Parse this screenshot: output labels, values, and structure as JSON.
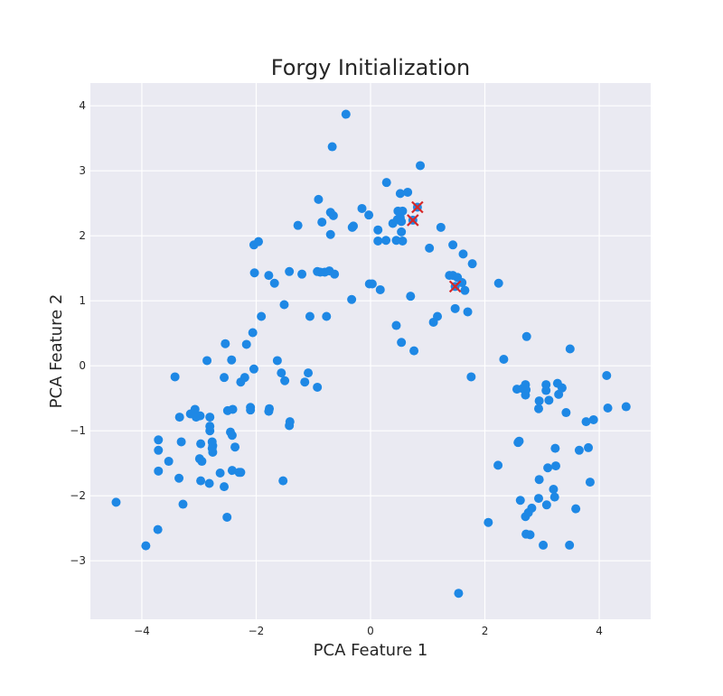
{
  "chart_data": {
    "type": "scatter",
    "title": "Forgy Initialization",
    "xlabel": "PCA Feature 1",
    "ylabel": "PCA Feature 2",
    "xlim": [
      -4.9,
      4.9
    ],
    "ylim": [
      -3.9,
      4.35
    ],
    "xticks": [
      -4,
      -2,
      0,
      2,
      4
    ],
    "yticks": [
      -3,
      -2,
      -1,
      0,
      1,
      2,
      3,
      4
    ],
    "xtick_labels": [
      "−4",
      "−2",
      "0",
      "2",
      "4"
    ],
    "ytick_labels": [
      "−3",
      "−2",
      "−1",
      "0",
      "1",
      "2",
      "3",
      "4"
    ],
    "grid": true,
    "colors": {
      "plot_background": "#eaeaf2",
      "grid": "#ffffff",
      "points": "#1e88e5",
      "centroid_marker": "#d62728"
    },
    "series": [
      {
        "marker": "circle",
        "points": [
          [
            -0.43,
            3.87
          ],
          [
            -0.67,
            3.37
          ],
          [
            0.87,
            3.08
          ],
          [
            0.28,
            2.82
          ],
          [
            0.52,
            2.65
          ],
          [
            0.65,
            2.67
          ],
          [
            -0.91,
            2.56
          ],
          [
            -0.7,
            2.36
          ],
          [
            -0.15,
            2.42
          ],
          [
            -0.65,
            2.31
          ],
          [
            -0.03,
            2.32
          ],
          [
            0.48,
            2.38
          ],
          [
            0.56,
            2.38
          ],
          [
            0.52,
            2.28
          ],
          [
            0.47,
            2.25
          ],
          [
            0.39,
            2.19
          ],
          [
            0.54,
            2.22
          ],
          [
            -0.85,
            2.21
          ],
          [
            -1.27,
            2.16
          ],
          [
            -0.32,
            2.13
          ],
          [
            -0.3,
            2.15
          ],
          [
            0.13,
            2.09
          ],
          [
            0.54,
            2.06
          ],
          [
            1.23,
            2.13
          ],
          [
            -0.7,
            2.02
          ],
          [
            0.13,
            1.92
          ],
          [
            0.27,
            1.93
          ],
          [
            0.45,
            1.93
          ],
          [
            0.56,
            1.92
          ],
          [
            1.03,
            1.81
          ],
          [
            1.44,
            1.86
          ],
          [
            1.62,
            1.72
          ],
          [
            1.78,
            1.57
          ],
          [
            -1.96,
            1.91
          ],
          [
            -2.04,
            1.86
          ],
          [
            -2.03,
            1.43
          ],
          [
            -1.78,
            1.39
          ],
          [
            -1.68,
            1.27
          ],
          [
            -1.42,
            1.45
          ],
          [
            -1.2,
            1.41
          ],
          [
            -0.88,
            1.44
          ],
          [
            -0.8,
            1.44
          ],
          [
            -0.72,
            1.46
          ],
          [
            -0.63,
            1.41
          ],
          [
            -0.93,
            1.45
          ],
          [
            -0.02,
            1.26
          ],
          [
            0.03,
            1.26
          ],
          [
            0.17,
            1.17
          ],
          [
            1.38,
            1.39
          ],
          [
            1.44,
            1.39
          ],
          [
            1.52,
            1.36
          ],
          [
            1.6,
            1.28
          ],
          [
            1.65,
            1.16
          ],
          [
            2.24,
            1.27
          ],
          [
            -0.33,
            1.02
          ],
          [
            0.7,
            1.07
          ],
          [
            -1.51,
            0.94
          ],
          [
            -1.91,
            0.76
          ],
          [
            -1.06,
            0.76
          ],
          [
            -0.77,
            0.76
          ],
          [
            1.17,
            0.76
          ],
          [
            1.1,
            0.67
          ],
          [
            1.48,
            0.88
          ],
          [
            1.7,
            0.83
          ],
          [
            0.45,
            0.62
          ],
          [
            0.54,
            0.36
          ],
          [
            0.76,
            0.23
          ],
          [
            -2.06,
            0.51
          ],
          [
            -2.54,
            0.34
          ],
          [
            -2.17,
            0.33
          ],
          [
            2.33,
            0.1
          ],
          [
            -2.86,
            0.08
          ],
          [
            -2.43,
            0.09
          ],
          [
            -1.63,
            0.08
          ],
          [
            -2.04,
            -0.05
          ],
          [
            -1.56,
            -0.11
          ],
          [
            -1.09,
            -0.11
          ],
          [
            -3.42,
            -0.17
          ],
          [
            -2.56,
            -0.18
          ],
          [
            -2.2,
            -0.18
          ],
          [
            -2.27,
            -0.25
          ],
          [
            -1.5,
            -0.23
          ],
          [
            -1.15,
            -0.25
          ],
          [
            -0.93,
            -0.33
          ],
          [
            1.76,
            -0.17
          ],
          [
            2.56,
            -0.36
          ],
          [
            2.66,
            -0.35
          ],
          [
            2.71,
            -0.29
          ],
          [
            2.72,
            -0.37
          ],
          [
            2.71,
            -0.45
          ],
          [
            3.07,
            -0.29
          ],
          [
            3.07,
            -0.38
          ],
          [
            3.12,
            -0.53
          ],
          [
            3.27,
            -0.27
          ],
          [
            3.29,
            -0.44
          ],
          [
            3.35,
            -0.34
          ],
          [
            2.95,
            -0.54
          ],
          [
            2.94,
            -0.66
          ],
          [
            3.42,
            -0.72
          ],
          [
            3.49,
            0.26
          ],
          [
            2.73,
            0.45
          ],
          [
            4.13,
            -0.15
          ],
          [
            -3.07,
            -0.67
          ],
          [
            -3.15,
            -0.74
          ],
          [
            -3.05,
            -0.79
          ],
          [
            -3.34,
            -0.79
          ],
          [
            -2.98,
            -0.77
          ],
          [
            -2.81,
            -0.79
          ],
          [
            -2.5,
            -0.69
          ],
          [
            -2.41,
            -0.67
          ],
          [
            -2.1,
            -0.64
          ],
          [
            -2.1,
            -0.68
          ],
          [
            -1.77,
            -0.66
          ],
          [
            -1.78,
            -0.7
          ],
          [
            -2.81,
            -0.93
          ],
          [
            -2.81,
            -1.0
          ],
          [
            -2.45,
            -1.02
          ],
          [
            -2.42,
            -1.07
          ],
          [
            -1.41,
            -0.86
          ],
          [
            -1.42,
            -0.92
          ],
          [
            3.77,
            -0.86
          ],
          [
            3.9,
            -0.83
          ],
          [
            4.15,
            -0.65
          ],
          [
            4.47,
            -0.63
          ],
          [
            -3.71,
            -1.14
          ],
          [
            -3.31,
            -1.17
          ],
          [
            -2.77,
            -1.17
          ],
          [
            -2.97,
            -1.2
          ],
          [
            -2.76,
            -1.23
          ],
          [
            -2.77,
            -1.27
          ],
          [
            -2.76,
            -1.33
          ],
          [
            -2.37,
            -1.25
          ],
          [
            -3.71,
            -1.3
          ],
          [
            -3.53,
            -1.47
          ],
          [
            -2.99,
            -1.43
          ],
          [
            -2.95,
            -1.47
          ],
          [
            2.6,
            -1.16
          ],
          [
            2.58,
            -1.18
          ],
          [
            3.23,
            -1.27
          ],
          [
            3.65,
            -1.3
          ],
          [
            3.81,
            -1.26
          ],
          [
            -3.71,
            -1.62
          ],
          [
            -3.35,
            -1.73
          ],
          [
            -2.63,
            -1.65
          ],
          [
            -2.42,
            -1.61
          ],
          [
            -2.27,
            -1.64
          ],
          [
            -2.3,
            -1.64
          ],
          [
            -2.97,
            -1.77
          ],
          [
            -2.82,
            -1.81
          ],
          [
            -2.56,
            -1.86
          ],
          [
            -1.53,
            -1.77
          ],
          [
            2.23,
            -1.53
          ],
          [
            3.1,
            -1.57
          ],
          [
            3.24,
            -1.54
          ],
          [
            2.95,
            -1.75
          ],
          [
            3.2,
            -1.9
          ],
          [
            3.84,
            -1.79
          ],
          [
            -3.28,
            -2.13
          ],
          [
            -4.45,
            -2.1
          ],
          [
            2.62,
            -2.07
          ],
          [
            2.94,
            -2.04
          ],
          [
            3.08,
            -2.14
          ],
          [
            3.22,
            -2.02
          ],
          [
            2.71,
            -2.32
          ],
          [
            2.76,
            -2.26
          ],
          [
            2.82,
            -2.19
          ],
          [
            3.59,
            -2.2
          ],
          [
            -2.51,
            -2.33
          ],
          [
            2.06,
            -2.41
          ],
          [
            -3.72,
            -2.52
          ],
          [
            -3.93,
            -2.77
          ],
          [
            2.72,
            -2.59
          ],
          [
            2.79,
            -2.6
          ],
          [
            3.02,
            -2.76
          ],
          [
            3.48,
            -2.76
          ],
          [
            1.54,
            -3.5
          ]
        ]
      },
      {
        "marker": "x",
        "points": [
          [
            0.82,
            2.44
          ],
          [
            0.74,
            2.24
          ],
          [
            1.48,
            1.22
          ]
        ]
      }
    ]
  }
}
